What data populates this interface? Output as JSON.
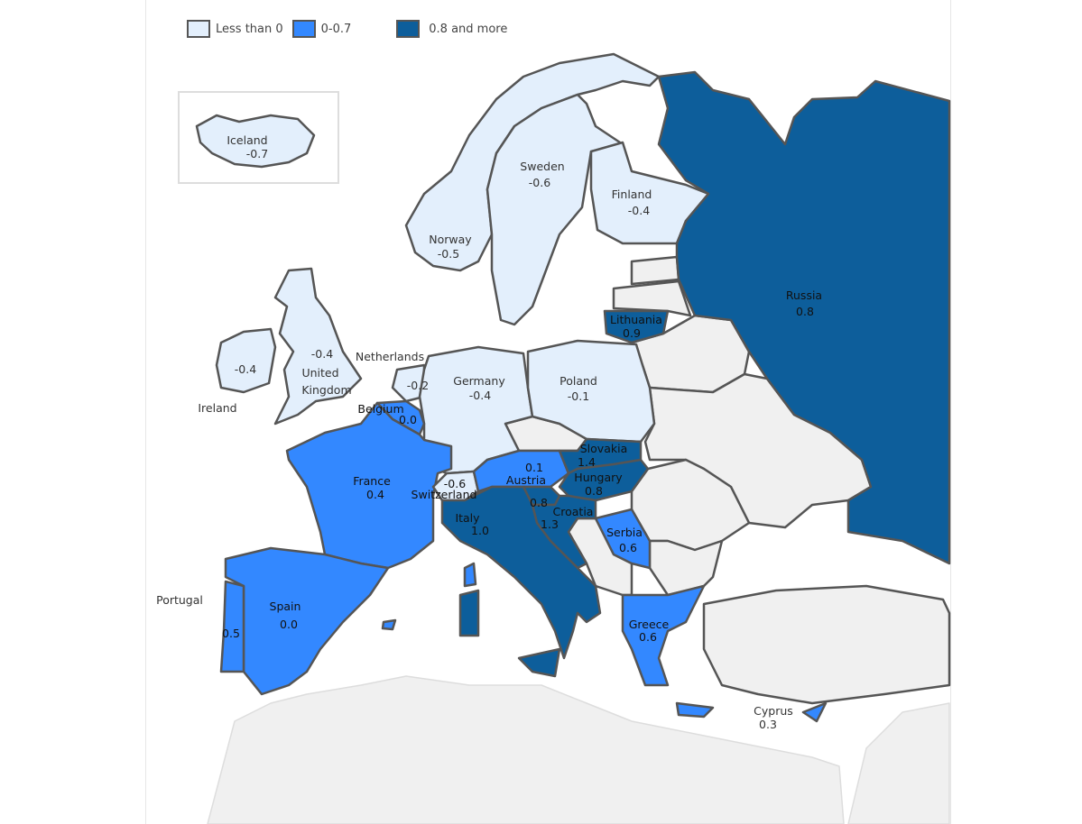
{
  "legend": [
    {
      "label": "Less than 0",
      "color": "#e3effc"
    },
    {
      "label": "0-0.7",
      "color": "#3388ff"
    },
    {
      "label": "0.8 and more",
      "color": "#0d5e9b"
    }
  ],
  "colors": {
    "no_data": "#f0f0f0",
    "border": "#555555"
  },
  "countries": {
    "iceland": {
      "name": "Iceland",
      "value": "-0.7"
    },
    "norway": {
      "name": "Norway",
      "value": "-0.5"
    },
    "sweden": {
      "name": "Sweden",
      "value": "-0.6"
    },
    "finland": {
      "name": "Finland",
      "value": "-0.4"
    },
    "russia": {
      "name": "Russia",
      "value": "0.8"
    },
    "lithuania": {
      "name": "Lithuania",
      "value": "0.9"
    },
    "uk": {
      "name": "United Kingdom",
      "name1": "United",
      "name2": "Kingdom",
      "value": "-0.4"
    },
    "ireland": {
      "name": "Ireland",
      "value": "-0.4"
    },
    "netherlands": {
      "name": "Netherlands",
      "value": "-0.2"
    },
    "belgium": {
      "name": "Belgium",
      "value": "0.0"
    },
    "germany": {
      "name": "Germany",
      "value": "-0.4"
    },
    "poland": {
      "name": "Poland",
      "value": "-0.1"
    },
    "france": {
      "name": "France",
      "value": "0.4"
    },
    "switzerland": {
      "name": "Switzerland",
      "value": "-0.6"
    },
    "austria": {
      "name": "Austria",
      "value": "0.1"
    },
    "slovakia": {
      "name": "Slovakia",
      "value": "1.4"
    },
    "hungary": {
      "name": "Hungary",
      "value": "0.8"
    },
    "slovenia": {
      "value": "0.8"
    },
    "croatia": {
      "name": "Croatia",
      "value": "1.3"
    },
    "italy": {
      "name": "Italy",
      "value": "1.0"
    },
    "serbia": {
      "name": "Serbia",
      "value": "0.6"
    },
    "spain": {
      "name": "Spain",
      "value": "0.0"
    },
    "portugal": {
      "name": "Portugal",
      "value": "0.5"
    },
    "greece": {
      "name": "Greece",
      "value": "0.6"
    },
    "cyprus": {
      "name": "Cyprus",
      "value": "0.3"
    }
  }
}
